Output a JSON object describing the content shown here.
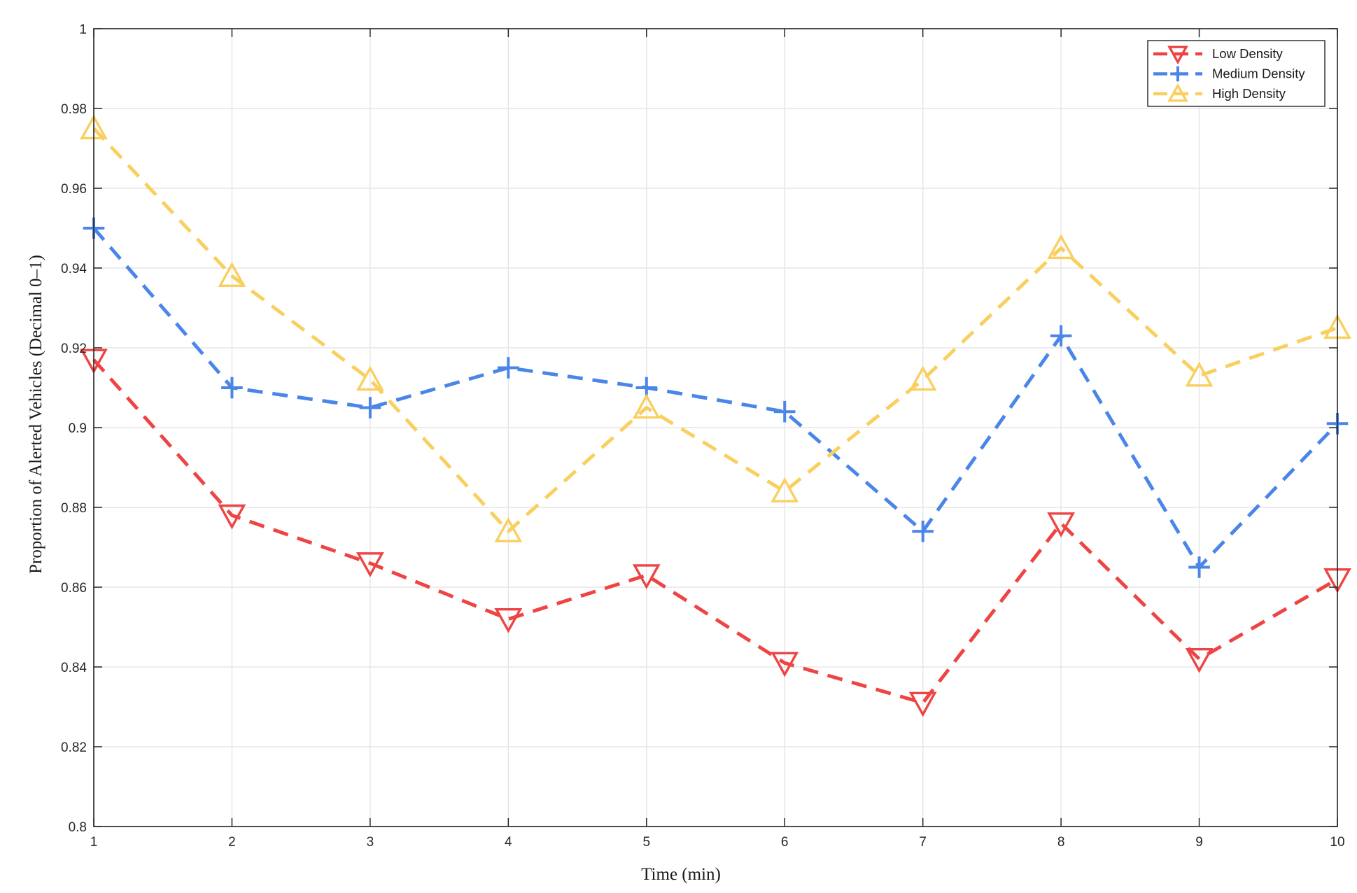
{
  "chart_data": {
    "type": "line",
    "title": "",
    "xlabel": "Time (min)",
    "ylabel": "Proportion of Alerted Vehicles  (Decimal  0–1)",
    "xlim": [
      1,
      10
    ],
    "ylim": [
      0.8,
      1
    ],
    "x": [
      1,
      2,
      3,
      4,
      5,
      6,
      7,
      8,
      9,
      10
    ],
    "x_ticks": [
      "1",
      "2",
      "3",
      "4",
      "5",
      "6",
      "7",
      "8",
      "9",
      "10"
    ],
    "y_ticks": [
      "0.8",
      "0.82",
      "0.84",
      "0.86",
      "0.88",
      "0.9",
      "0.92",
      "0.94",
      "0.96",
      "0.98",
      "1"
    ],
    "y_tick_values": [
      0.8,
      0.82,
      0.84,
      0.86,
      0.88,
      0.9,
      0.92,
      0.94,
      0.96,
      0.98,
      1.0
    ],
    "grid": true,
    "legend_position": "top-right",
    "series": [
      {
        "name": "Low Density",
        "color": "#ee4444",
        "marker": "triangle-down",
        "line_style": "dashed",
        "values": [
          0.917,
          0.878,
          0.866,
          0.852,
          0.863,
          0.841,
          0.831,
          0.876,
          0.842,
          0.862
        ]
      },
      {
        "name": "Medium Density",
        "color": "#4a86e8",
        "marker": "plus",
        "line_style": "dashed",
        "values": [
          0.95,
          0.91,
          0.905,
          0.915,
          0.91,
          0.904,
          0.874,
          0.923,
          0.865,
          0.901
        ]
      },
      {
        "name": "High Density",
        "color": "#f9cf5f",
        "marker": "triangle-up",
        "line_style": "dashed",
        "values": [
          0.975,
          0.938,
          0.912,
          0.874,
          0.905,
          0.884,
          0.912,
          0.945,
          0.913,
          0.925
        ]
      }
    ]
  }
}
